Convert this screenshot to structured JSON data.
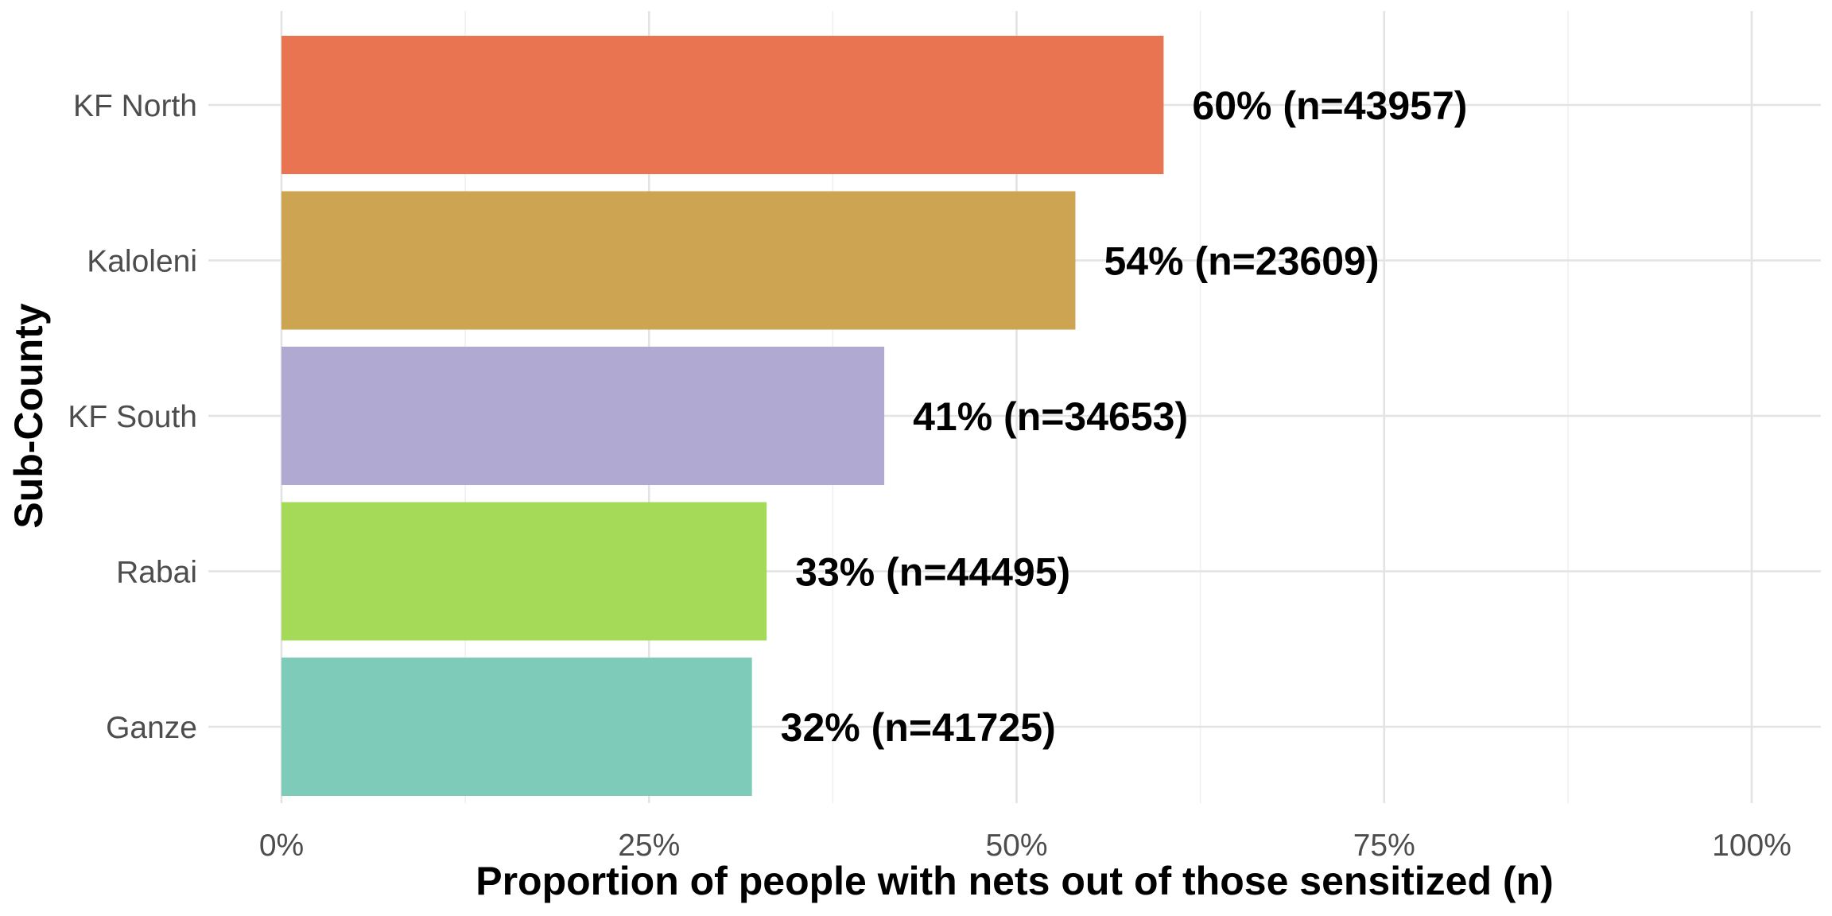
{
  "chart_data": {
    "type": "bar",
    "orientation": "horizontal",
    "xlabel": "Proportion of people with nets out of those sensitized (n)",
    "ylabel": "Sub-County",
    "xlim": [
      0,
      100
    ],
    "x_ticks": [
      0,
      25,
      50,
      75,
      100
    ],
    "x_tick_labels": [
      "0%",
      "25%",
      "50%",
      "75%",
      "100%"
    ],
    "grid": true,
    "legend": "none",
    "categories": [
      "KF North",
      "Kaloleni",
      "KF South",
      "Rabai",
      "Ganze"
    ],
    "values": [
      60,
      54,
      41,
      33,
      32
    ],
    "n": [
      43957,
      23609,
      34653,
      44495,
      41725
    ],
    "data_labels": [
      "60% (n=43957)",
      "54% (n=23609)",
      "41% (n=34653)",
      "33% (n=44495)",
      "32% (n=41725)"
    ],
    "colors": [
      "#E97452",
      "#CDA452",
      "#B0AAD2",
      "#A5DA58",
      "#7ECBBA"
    ]
  }
}
